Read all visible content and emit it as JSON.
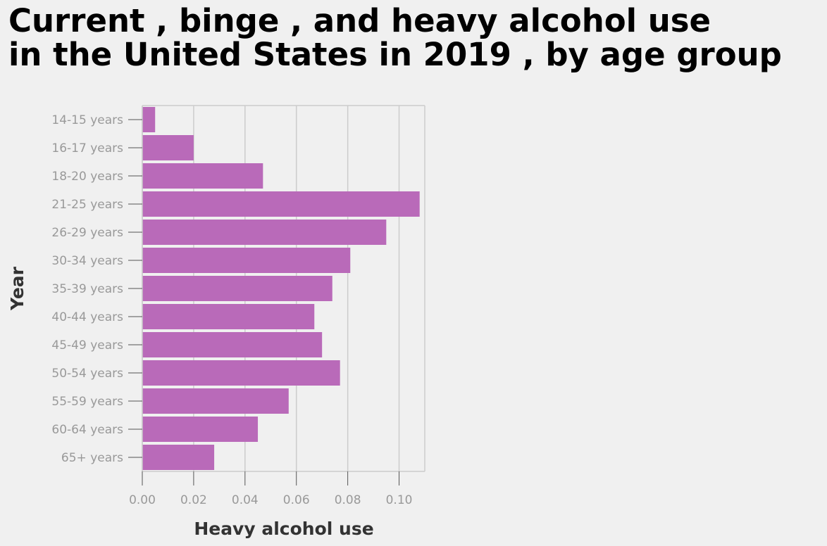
{
  "title_lines": [
    "Current , binge , and heavy alcohol use",
    "in the United States in 2019 , by age group"
  ],
  "chart_data": {
    "type": "bar",
    "orientation": "horizontal",
    "title": "Current , binge , and heavy alcohol use in the United States in 2019 , by age group",
    "xlabel": "Heavy alcohol use",
    "ylabel": "Year",
    "categories": [
      "14-15 years",
      "16-17 years",
      "18-20 years",
      "21-25 years",
      "26-29 years",
      "30-34 years",
      "35-39 years",
      "40-44 years",
      "45-49 years",
      "50-54 years",
      "55-59 years",
      "60-64 years",
      "65+ years"
    ],
    "values": [
      0.005,
      0.02,
      0.047,
      0.108,
      0.095,
      0.081,
      0.074,
      0.067,
      0.07,
      0.077,
      0.057,
      0.045,
      0.028
    ],
    "xlim": [
      0,
      0.11
    ],
    "xticks": [
      0.0,
      0.02,
      0.04,
      0.06,
      0.08,
      0.1
    ],
    "xtick_labels": [
      "0.00",
      "0.02",
      "0.04",
      "0.06",
      "0.08",
      "0.10"
    ],
    "grid": true,
    "bar_color": "#b96ab9"
  }
}
